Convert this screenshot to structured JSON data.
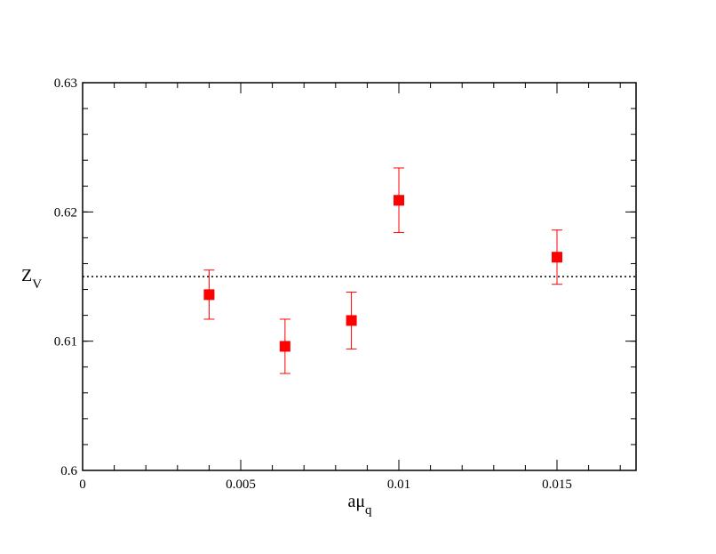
{
  "chart_data": {
    "type": "scatter",
    "x_label": "aμ",
    "x_label_sub": "q",
    "y_label": "Z",
    "y_label_sub": "V",
    "xlim": [
      0,
      0.0175
    ],
    "xticks": [
      0,
      0.005,
      0.01,
      0.015
    ],
    "ylim": [
      0.6,
      0.63
    ],
    "yticks": [
      0.6,
      0.61,
      0.62,
      0.63
    ],
    "minor_divisions": 5,
    "series": [
      {
        "color": "#ff0000",
        "x": [
          0.004,
          0.0064,
          0.0085,
          0.01,
          0.015
        ],
        "values": [
          0.6136,
          0.6096,
          0.6116,
          0.6209,
          0.6165
        ],
        "errors": [
          0.0019,
          0.0021,
          0.0022,
          0.0025,
          0.0021
        ]
      }
    ],
    "hline": {
      "value": 0.615,
      "style": "dotted",
      "color": "#000000"
    }
  }
}
